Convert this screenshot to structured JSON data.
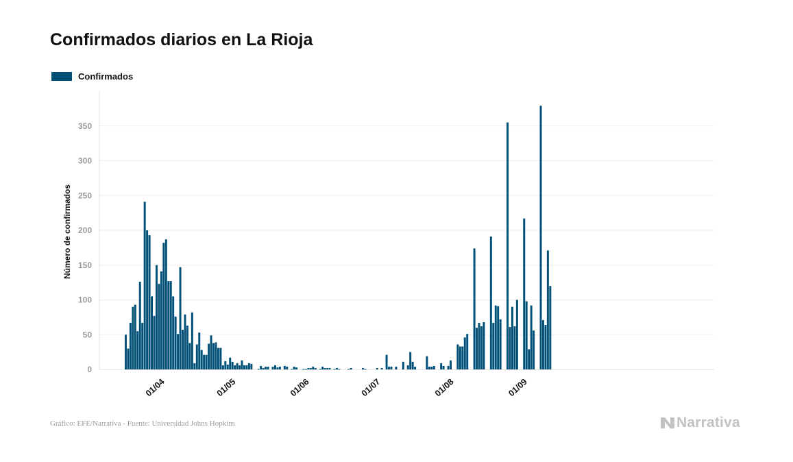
{
  "header": {
    "title": "Confirmados diarios en La Rioja"
  },
  "legend": {
    "label": "Confirmados",
    "color": "#005077"
  },
  "footer": {
    "source": "Gráfico: EFE/Narrativa - Fuente: Universidad Johns Hopkins",
    "brand": "Narrativa"
  },
  "chart_data": {
    "type": "bar",
    "ylabel": "Número de confirmados",
    "xlabel": "",
    "ylim": [
      0,
      400
    ],
    "yticks": [
      0,
      50,
      100,
      150,
      200,
      250,
      300,
      350
    ],
    "grid": true,
    "legend_position": "top-left",
    "start_date": "2020-03-18",
    "x_ticks": [
      {
        "date": "2020-04-01",
        "label": "01/04"
      },
      {
        "date": "2020-05-01",
        "label": "01/05"
      },
      {
        "date": "2020-06-01",
        "label": "01/06"
      },
      {
        "date": "2020-07-01",
        "label": "01/07"
      },
      {
        "date": "2020-08-01",
        "label": "01/08"
      },
      {
        "date": "2020-09-01",
        "label": "01/09"
      }
    ],
    "series": [
      {
        "name": "Confirmados",
        "values": [
          50,
          30,
          67,
          90,
          93,
          55,
          126,
          67,
          241,
          200,
          193,
          105,
          77,
          150,
          123,
          141,
          182,
          187,
          127,
          127,
          105,
          76,
          51,
          147,
          57,
          79,
          63,
          38,
          82,
          9,
          36,
          53,
          28,
          21,
          21,
          37,
          49,
          38,
          39,
          31,
          31,
          6,
          12,
          7,
          17,
          11,
          6,
          9,
          6,
          13,
          6,
          6,
          9,
          8,
          0,
          0,
          1,
          5,
          2,
          4,
          4,
          0,
          4,
          6,
          3,
          4,
          0,
          5,
          4,
          0,
          1,
          4,
          3,
          0,
          0,
          1,
          1,
          2,
          2,
          4,
          2,
          0,
          1,
          4,
          2,
          2,
          2,
          0,
          1,
          2,
          1,
          0,
          0,
          0,
          1,
          2,
          0,
          0,
          0,
          0,
          2,
          1,
          0,
          0,
          0,
          0,
          2,
          0,
          2,
          0,
          21,
          4,
          4,
          0,
          4,
          0,
          0,
          11,
          0,
          6,
          25,
          11,
          4,
          0,
          0,
          0,
          0,
          19,
          4,
          4,
          5,
          0,
          0,
          9,
          5,
          0,
          5,
          13,
          0,
          0,
          36,
          33,
          33,
          46,
          51,
          0,
          0,
          174,
          60,
          67,
          62,
          68,
          0,
          0,
          191,
          67,
          92,
          91,
          72,
          0,
          0,
          355,
          61,
          90,
          62,
          100,
          0,
          0,
          217,
          98,
          29,
          92,
          56,
          0,
          0,
          379,
          71,
          64,
          171,
          120
        ]
      }
    ]
  }
}
